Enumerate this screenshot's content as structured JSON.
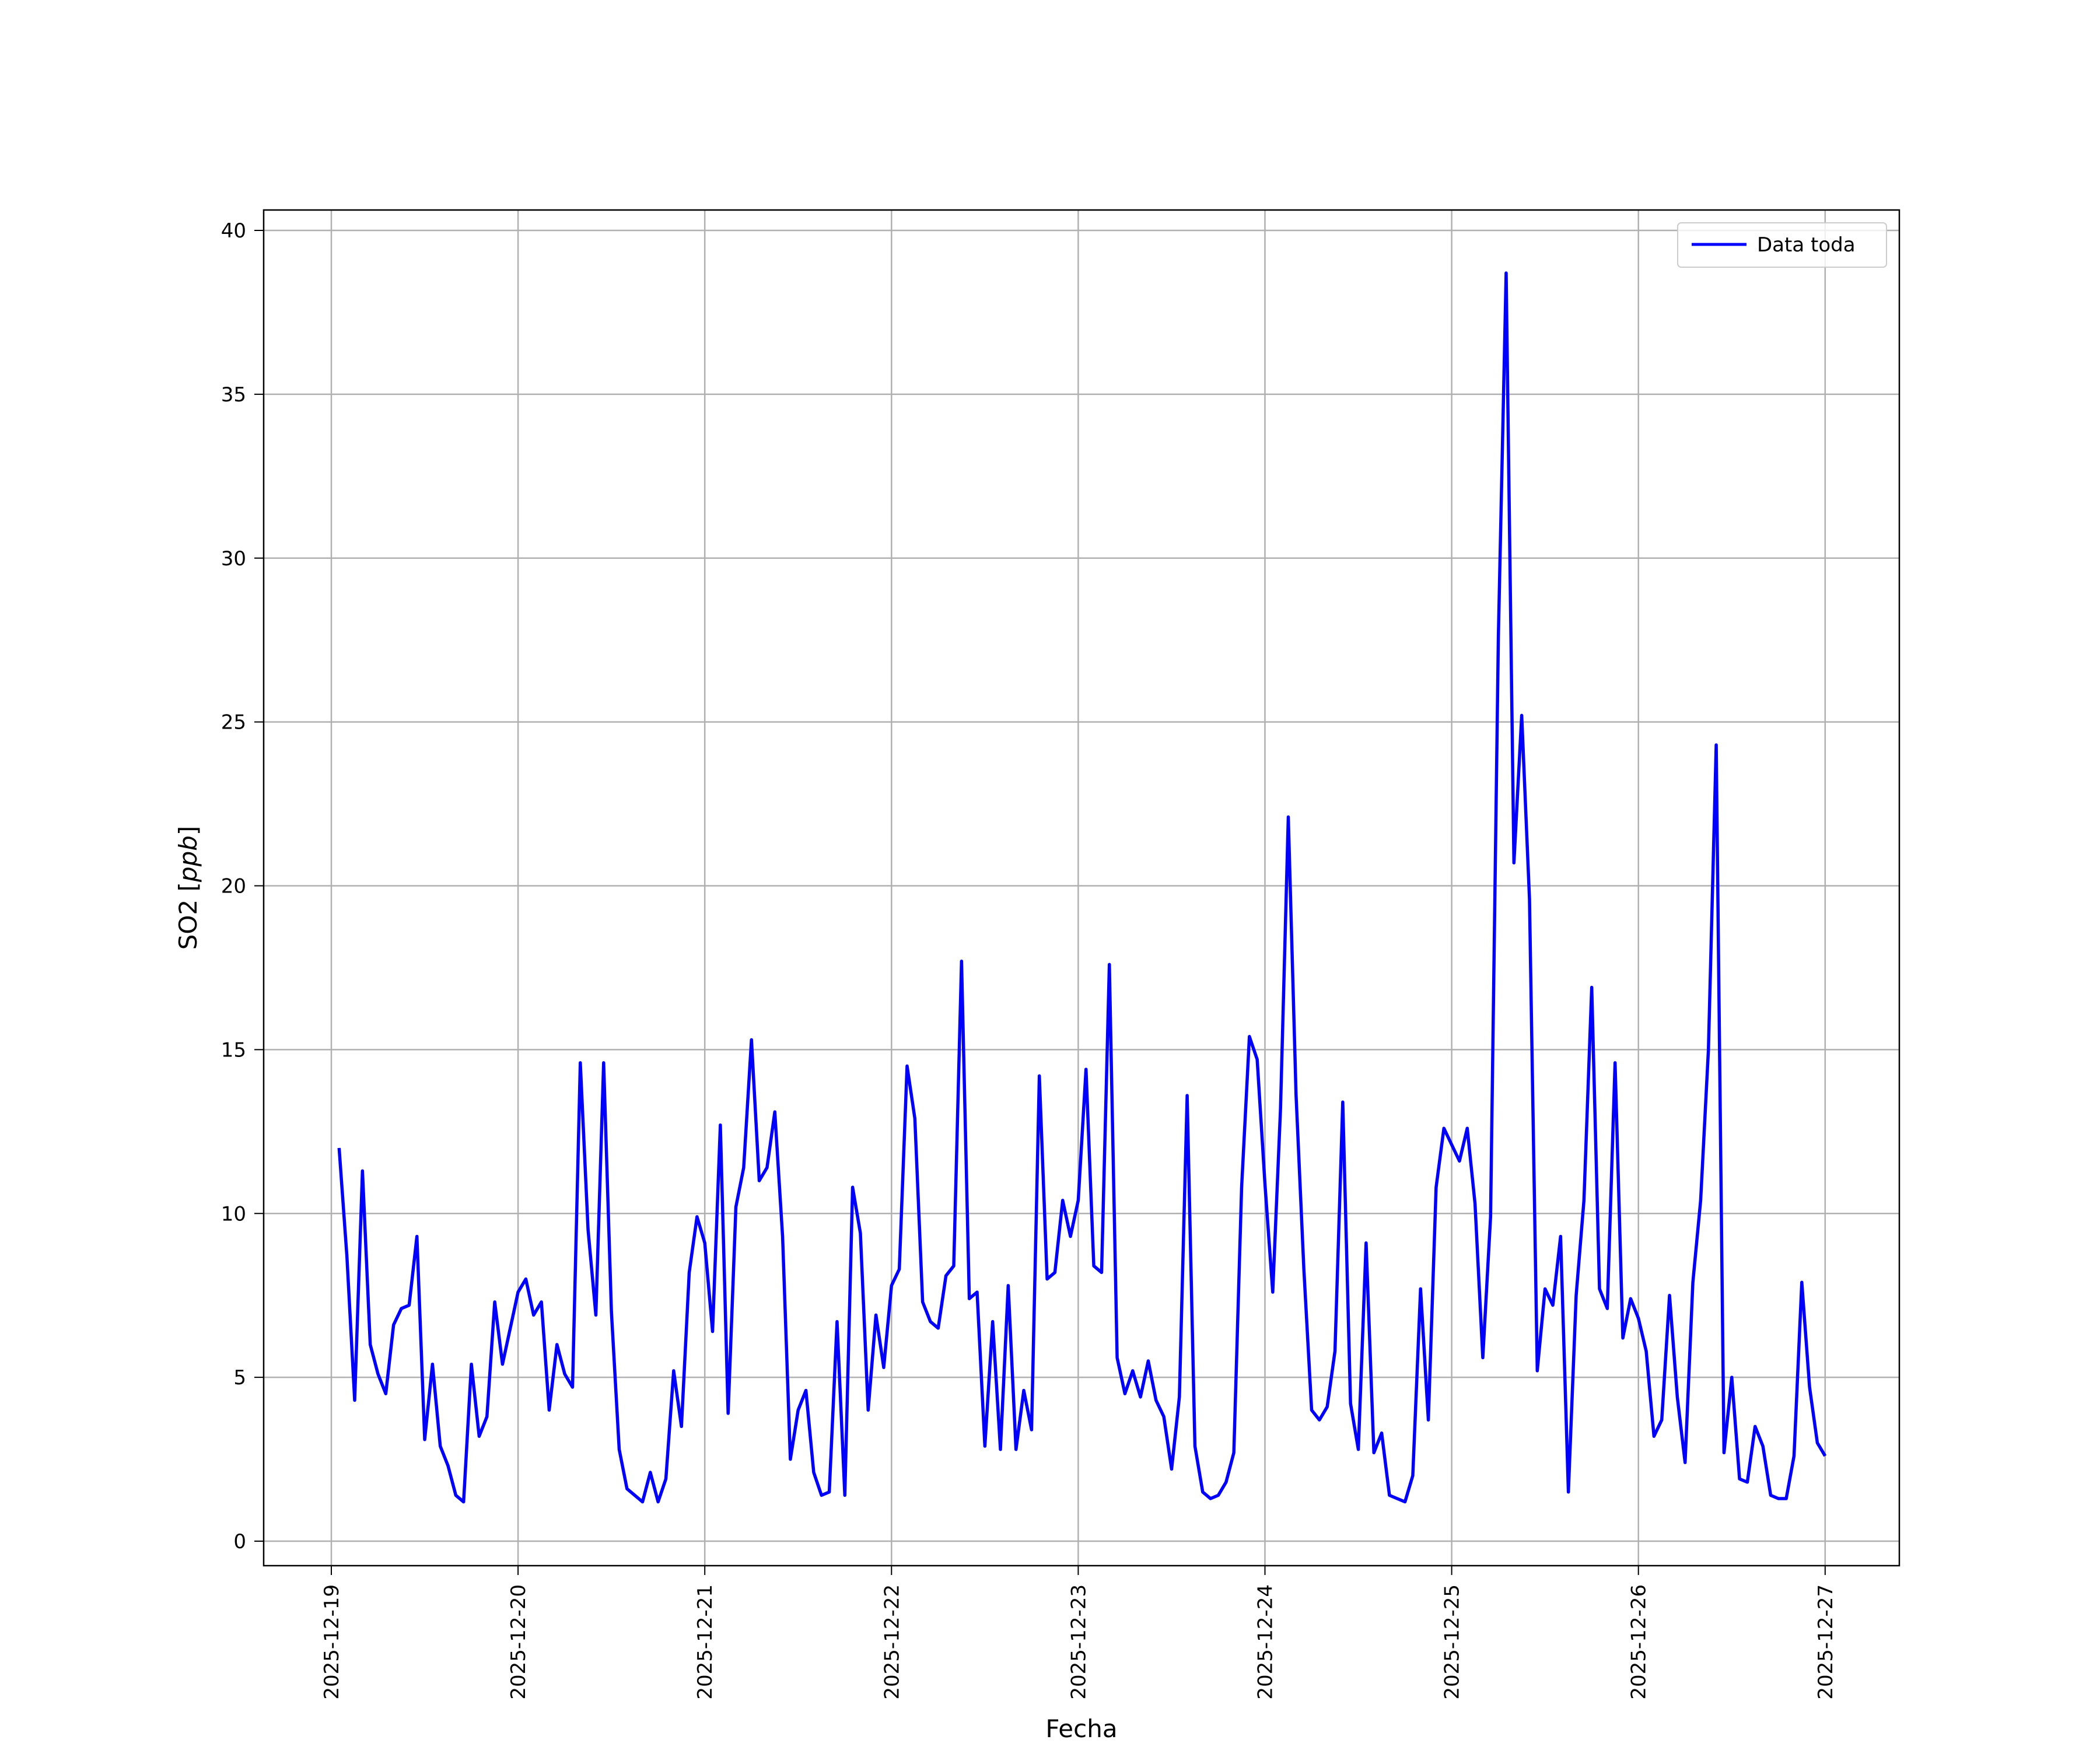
{
  "chart_data": {
    "type": "line",
    "title": "",
    "xlabel": "Fecha",
    "ylabel_main": "SO2 [",
    "ylabel_unit": "ppb",
    "ylabel_end": "]",
    "ylim": [
      -0.7,
      40.6
    ],
    "xlim": [
      "2025-12-18T14:00",
      "2025-12-27T10:00"
    ],
    "grid": true,
    "legend_position": "top-right",
    "x_ticks": [
      "2025-12-19",
      "2025-12-20",
      "2025-12-21",
      "2025-12-22",
      "2025-12-23",
      "2025-12-24",
      "2025-12-25",
      "2025-12-26",
      "2025-12-27"
    ],
    "y_ticks": [
      "0",
      "5",
      "10",
      "15",
      "20",
      "25",
      "30",
      "35",
      "40"
    ],
    "series": [
      {
        "name": "Data toda",
        "color": "#0000ff",
        "days": [
          {
            "date": "2025-12-19",
            "first_hour": "01:00",
            "values": [
              12.0,
              8.7,
              4.3,
              11.3,
              6.0,
              5.1,
              4.5,
              6.6,
              7.1,
              7.2,
              9.3,
              3.1,
              5.4,
              2.9,
              2.3,
              1.4,
              1.2,
              5.4,
              3.2,
              3.8,
              7.3,
              5.4,
              6.5,
              7.6
            ]
          },
          {
            "date": "2025-12-20",
            "first_hour": "01:00",
            "values": [
              8.0,
              6.9,
              7.3,
              4.0,
              6.0,
              5.1,
              4.7,
              14.6,
              9.5,
              6.9,
              14.6,
              7.0,
              2.8,
              1.6,
              1.4,
              1.2,
              2.1,
              1.2,
              1.9,
              5.2,
              3.5,
              8.2,
              9.9,
              9.1
            ]
          },
          {
            "date": "2025-12-21",
            "first_hour": "01:00",
            "values": [
              6.4,
              12.7,
              3.9,
              10.2,
              11.4,
              15.3,
              11.0,
              11.4,
              13.1,
              9.3,
              2.5,
              4.0,
              4.6,
              2.1,
              1.4,
              1.5,
              6.7,
              1.4,
              10.8,
              9.4,
              4.0,
              6.9,
              5.3,
              7.8
            ]
          },
          {
            "date": "2025-12-22",
            "first_hour": "01:00",
            "values": [
              8.3,
              14.5,
              12.9,
              7.3,
              6.7,
              6.5,
              8.1,
              8.4,
              17.7,
              7.4,
              7.6,
              2.9,
              6.7,
              2.8,
              7.8,
              2.8,
              4.6,
              3.4,
              14.2,
              8.0,
              8.2,
              10.4,
              9.3,
              10.4
            ]
          },
          {
            "date": "2025-12-23",
            "first_hour": "01:00",
            "values": [
              14.4,
              8.4,
              8.2,
              17.6,
              5.6,
              4.5,
              5.2,
              4.4,
              5.5,
              4.3,
              3.8,
              2.2,
              4.4,
              13.6,
              2.9,
              1.5,
              1.3,
              1.4,
              1.8,
              2.7,
              10.8,
              15.4,
              14.7,
              10.9
            ]
          },
          {
            "date": "2025-12-24",
            "first_hour": "01:00",
            "values": [
              7.6,
              13.2,
              22.1,
              13.6,
              8.3,
              4.0,
              3.7,
              4.1,
              5.8,
              13.4,
              4.2,
              2.8,
              9.1,
              2.7,
              3.3,
              1.4,
              1.3,
              1.2,
              2.0,
              7.7,
              3.7,
              10.8,
              12.6,
              12.1
            ]
          },
          {
            "date": "2025-12-25",
            "first_hour": "01:00",
            "values": [
              11.6,
              12.6,
              10.3,
              5.6,
              9.9,
              27.6,
              38.7,
              20.7,
              25.2,
              19.6,
              5.2,
              7.7,
              7.2,
              9.3,
              1.5,
              7.5,
              10.4,
              16.9,
              7.7,
              7.1,
              14.6,
              6.2,
              7.4,
              6.8
            ]
          },
          {
            "date": "2025-12-26",
            "first_hour": "01:00",
            "values": [
              5.8,
              3.2,
              3.7,
              7.5,
              4.4,
              2.4,
              7.9,
              10.4,
              15.0,
              24.3,
              2.7,
              5.0,
              1.9,
              1.8,
              3.5,
              2.9,
              1.4,
              1.3,
              1.3,
              2.6,
              7.9,
              4.7,
              3.0,
              2.6
            ]
          }
        ]
      }
    ]
  }
}
